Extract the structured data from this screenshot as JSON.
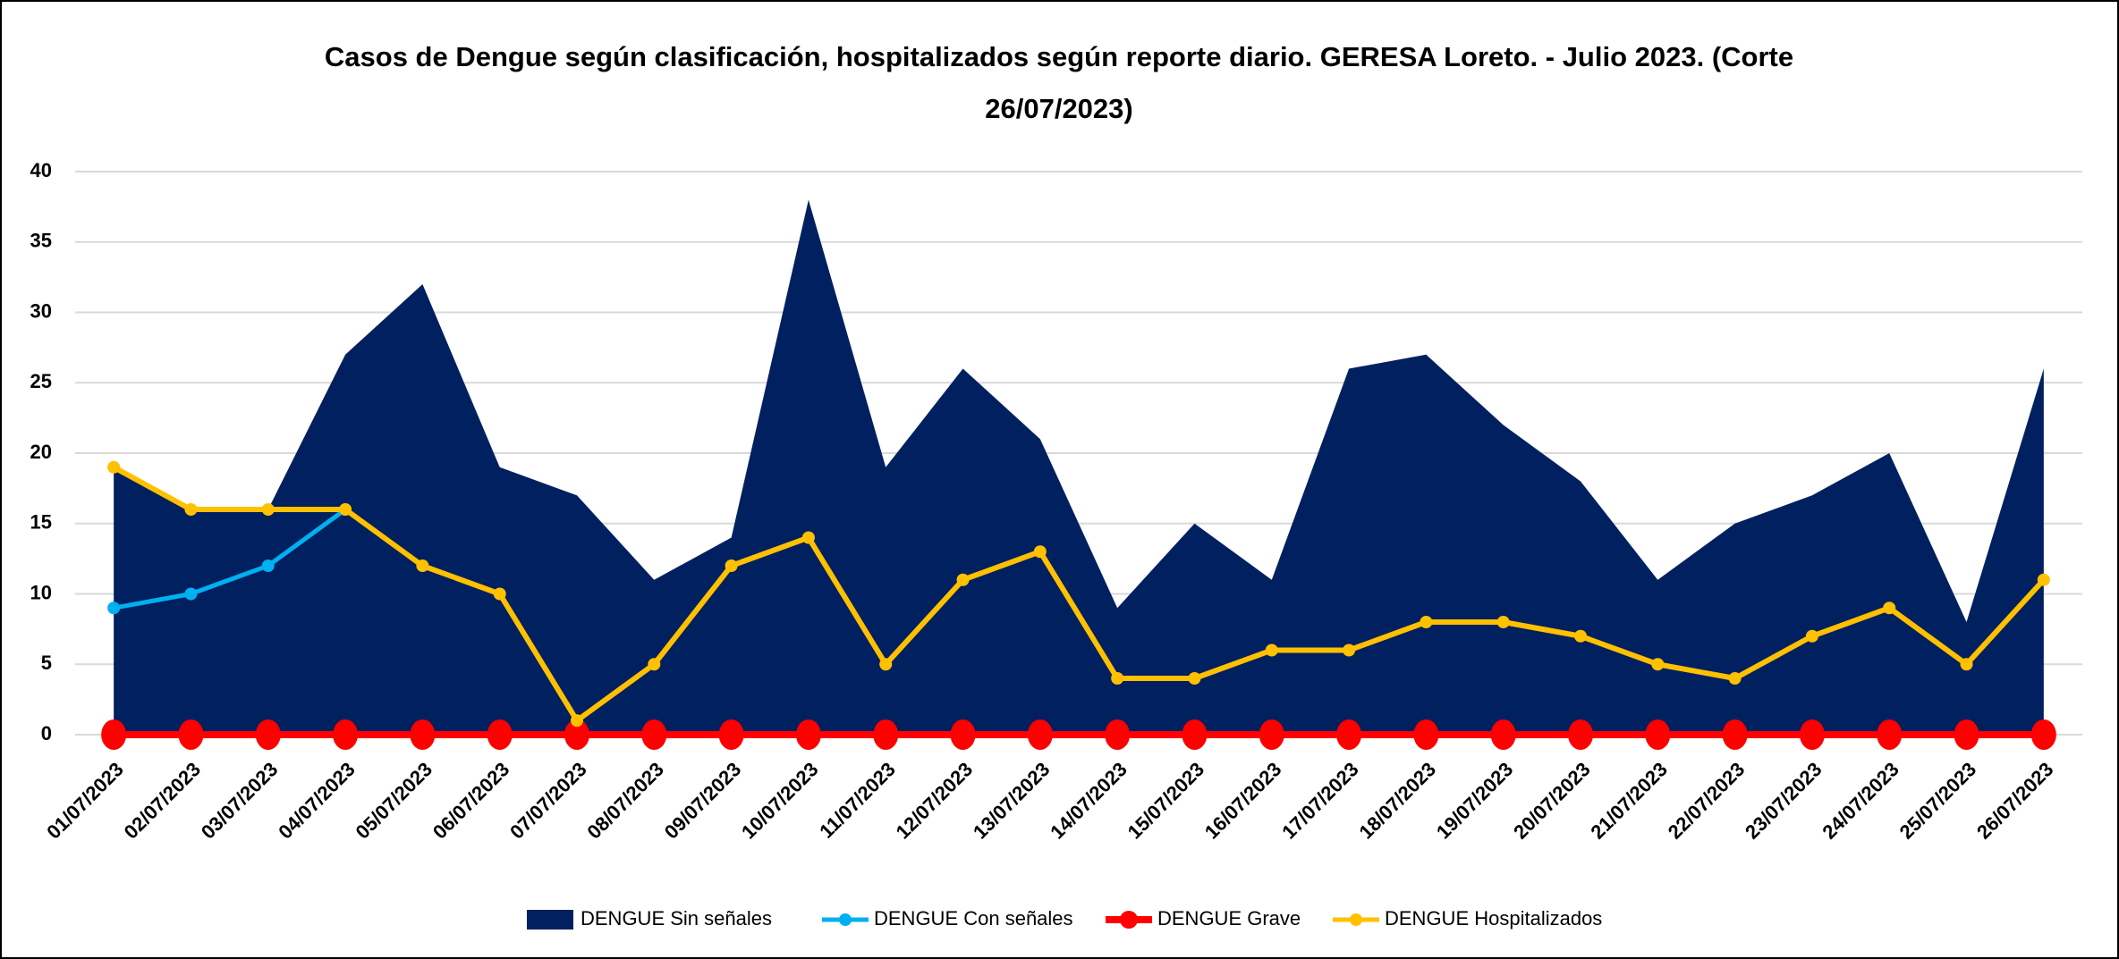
{
  "chart_data": {
    "type": "area-line",
    "title": [
      "Casos de Dengue según clasificación, hospitalizados según reporte diario. GERESA Loreto. - Julio 2023. (Corte",
      "26/07/2023)"
    ],
    "categories": [
      "01/07/2023",
      "02/07/2023",
      "03/07/2023",
      "04/07/2023",
      "05/07/2023",
      "06/07/2023",
      "07/07/2023",
      "08/07/2023",
      "09/07/2023",
      "10/07/2023",
      "11/07/2023",
      "12/07/2023",
      "13/07/2023",
      "14/07/2023",
      "15/07/2023",
      "16/07/2023",
      "17/07/2023",
      "18/07/2023",
      "19/07/2023",
      "20/07/2023",
      "21/07/2023",
      "22/07/2023",
      "23/07/2023",
      "24/07/2023",
      "25/07/2023",
      "26/07/2023"
    ],
    "series": [
      {
        "name": "DENGUE Sin señales",
        "kind": "area",
        "color": "#002060",
        "values": [
          19,
          16,
          16,
          27,
          32,
          19,
          17,
          11,
          14,
          38,
          19,
          26,
          21,
          9,
          15,
          11,
          26,
          27,
          22,
          18,
          11,
          15,
          17,
          20,
          8,
          26
        ]
      },
      {
        "name": "DENGUE Con señales",
        "kind": "line",
        "color": "#00b0f0",
        "values": [
          9,
          10,
          12,
          16,
          null,
          null,
          null,
          null,
          null,
          null,
          null,
          null,
          null,
          null,
          null,
          null,
          null,
          null,
          null,
          null,
          null,
          null,
          null,
          null,
          null,
          null
        ]
      },
      {
        "name": "DENGUE Grave",
        "kind": "line",
        "color": "#ff0000",
        "values": [
          0,
          0,
          0,
          0,
          0,
          0,
          0,
          0,
          0,
          0,
          0,
          0,
          0,
          0,
          0,
          0,
          0,
          0,
          0,
          0,
          0,
          0,
          0,
          0,
          0,
          0
        ]
      },
      {
        "name": "DENGUE Hospitalizados",
        "kind": "line",
        "color": "#ffc000",
        "values": [
          19,
          16,
          16,
          16,
          12,
          10,
          1,
          5,
          12,
          14,
          5,
          11,
          13,
          4,
          4,
          6,
          6,
          8,
          8,
          7,
          5,
          4,
          7,
          9,
          5,
          11
        ]
      }
    ],
    "ylim": [
      0,
      40
    ],
    "yticks": [
      0,
      5,
      10,
      15,
      20,
      25,
      30,
      35,
      40
    ],
    "grid": true,
    "legend": "bottom"
  }
}
